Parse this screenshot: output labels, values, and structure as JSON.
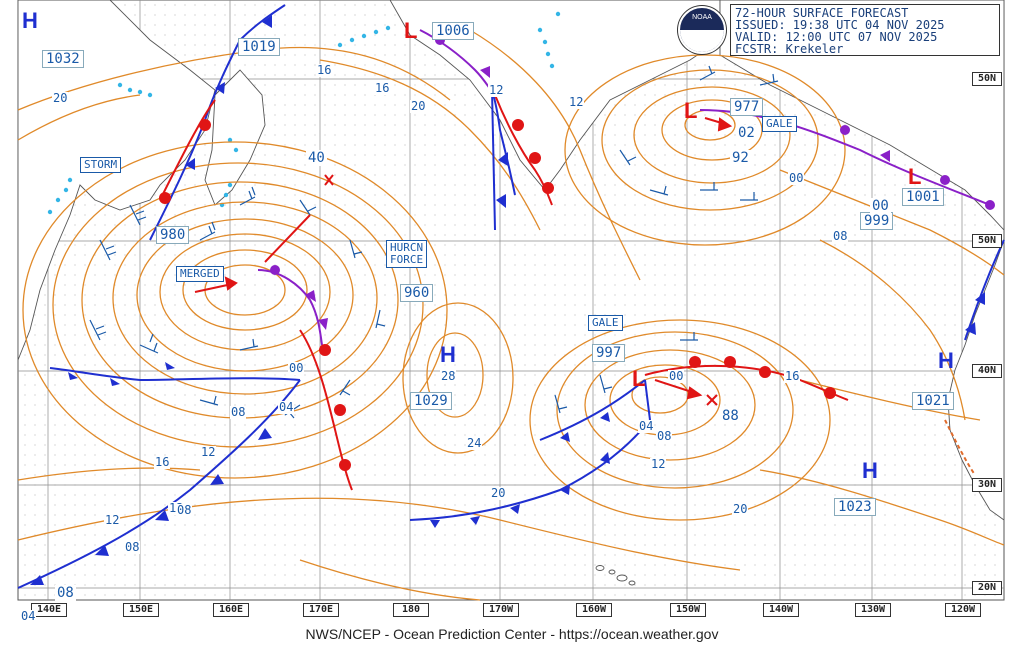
{
  "header": {
    "title": "72-HOUR SURFACE FORECAST",
    "issued": "ISSUED: 19:38 UTC 04 NOV 2025",
    "valid": "VALID:  12:00 UTC 07 NOV 2025",
    "forecaster": "FCSTR:  Krekeler",
    "logo_text": "NOAA"
  },
  "footer": "NWS/NCEP - Ocean Prediction Center - https://ocean.weather.gov",
  "colors": {
    "isobar": "#e08a2a",
    "cold_front": "#1f2fd0",
    "warm_front": "#e01515",
    "occluded_front": "#8a20c8",
    "text_blue": "#1a5aa8",
    "wind_barb": "#1a5aa8",
    "ice_edge": "#33b5e6",
    "grid": "#9a9a9a",
    "land": "#ffffff"
  },
  "lon_labels": [
    "140E",
    "150E",
    "160E",
    "170E",
    "180",
    "170W",
    "160W",
    "150W",
    "140W",
    "130W",
    "120W"
  ],
  "lat_labels": [
    "50N",
    "50N",
    "40N",
    "30N",
    "20N"
  ],
  "pressure_centers": [
    {
      "type": "H",
      "value": "1032"
    },
    {
      "type": "H",
      "value": "1019"
    },
    {
      "type": "L",
      "value": "1006"
    },
    {
      "type": "L",
      "value": "977"
    },
    {
      "type": "L",
      "value": "1001"
    },
    {
      "type": "L",
      "value": "980"
    },
    {
      "type": "L",
      "value": "960"
    },
    {
      "type": "H",
      "value": "1029"
    },
    {
      "type": "L",
      "value": "997"
    },
    {
      "type": "H",
      "value": "1021"
    },
    {
      "type": "H",
      "value": "1023"
    },
    {
      "type": "L",
      "value": "999"
    }
  ],
  "warnings": [
    "STORM",
    "MERGED",
    "HURCN\nFORCE",
    "GALE",
    "GALE"
  ],
  "other_labels": [
    "40",
    "02",
    "92",
    "88",
    "00",
    "08"
  ],
  "isobar_labels": [
    "20",
    "16",
    "16",
    "12",
    "12",
    "00",
    "08",
    "00",
    "04",
    "08",
    "16",
    "12",
    "12",
    "12",
    "08",
    "04",
    "28",
    "24",
    "20",
    "00",
    "04",
    "08",
    "12",
    "16",
    "20",
    "08",
    "20"
  ]
}
